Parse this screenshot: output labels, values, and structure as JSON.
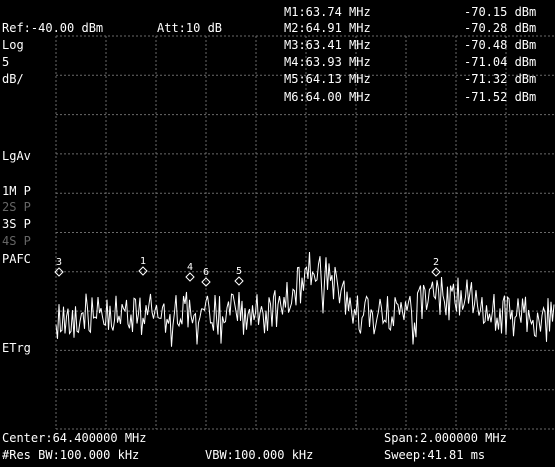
{
  "header": {
    "ref": "Ref:-40.00 dBm",
    "att": "Att:10 dB"
  },
  "scale": {
    "mode": "Log",
    "div_value": "5",
    "div_unit": "dB/"
  },
  "markers": [
    {
      "label": "M1:63.74 MHz",
      "level": "-70.15 dBm",
      "id": "1"
    },
    {
      "label": "M2:64.91 MHz",
      "level": "-70.28 dBm",
      "id": "2"
    },
    {
      "label": "M3:63.41 MHz",
      "level": "-70.48 dBm",
      "id": "3"
    },
    {
      "label": "M4:63.93 MHz",
      "level": "-71.04 dBm",
      "id": "4"
    },
    {
      "label": "M5:64.13 MHz",
      "level": "-71.32 dBm",
      "id": "5"
    },
    {
      "label": "M6:64.00 MHz",
      "level": "-71.52 dBm",
      "id": "6"
    }
  ],
  "side_labels": {
    "lgav": "LgAv",
    "trace1": "1M P",
    "trace2": "2S P",
    "trace3": "3S P",
    "trace4": "4S P",
    "pafc": "PAFC",
    "etrg": "ETrg"
  },
  "footer": {
    "center": "Center:64.400000 MHz",
    "res_bw": "#Res BW:100.000 kHz",
    "vbw": "VBW:100.000 kHz",
    "span": "Span:2.000000 MHz",
    "sweep": "Sweep:41.81 ms"
  },
  "colors": {
    "background": "#000000",
    "grid": "#6a6a6a",
    "trace": "#ffffff",
    "text": "#ffffff",
    "dim_text": "#666666"
  }
}
